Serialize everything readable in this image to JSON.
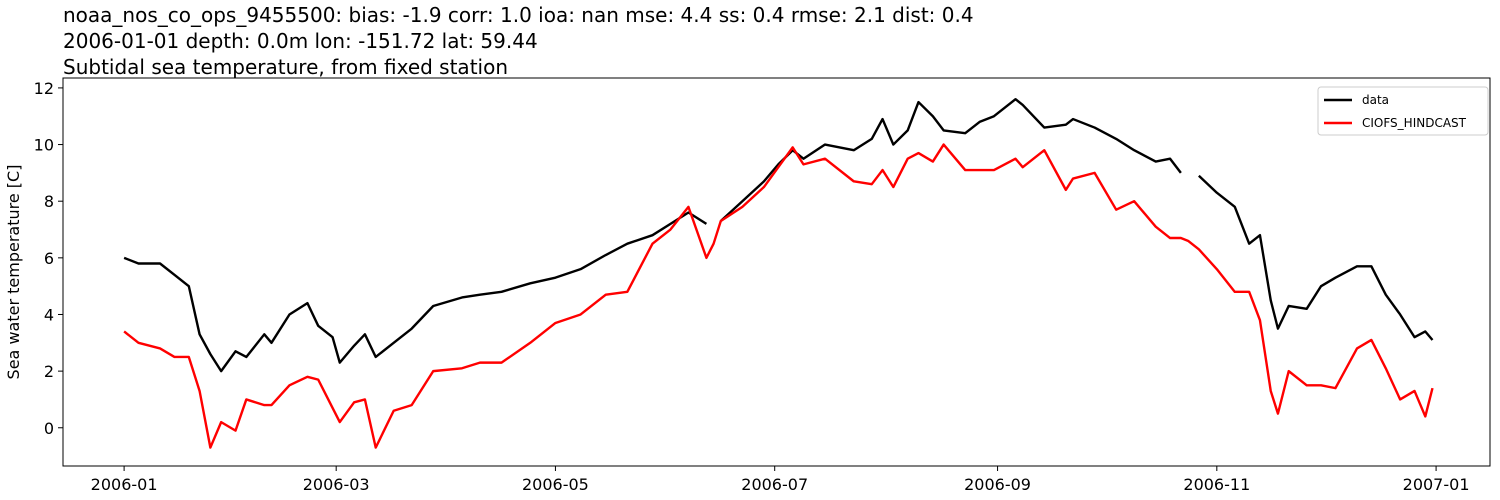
{
  "chart_data": {
    "type": "line",
    "title": [
      "noaa_nos_co_ops_9455500: bias: -1.9  corr: 1.0  ioa: nan  mse: 4.4  ss: 0.4  rmse: 2.1  dist: 0.4",
      "2006-01-01 depth: 0.0m lon: -151.72 lat: 59.44",
      "Subtidal sea temperature, from fixed station"
    ],
    "ylabel": "Sea water temperature [C]",
    "x": [
      "2006-01-01",
      "2006-01-05",
      "2006-01-11",
      "2006-01-15",
      "2006-01-19",
      "2006-01-22",
      "2006-01-25",
      "2006-01-28",
      "2006-02-01",
      "2006-02-04",
      "2006-02-09",
      "2006-02-11",
      "2006-02-16",
      "2006-02-21",
      "2006-02-24",
      "2006-02-28",
      "2006-03-02",
      "2006-03-06",
      "2006-03-09",
      "2006-03-12",
      "2006-03-17",
      "2006-03-22",
      "2006-03-28",
      "2006-04-05",
      "2006-04-10",
      "2006-04-16",
      "2006-04-24",
      "2006-05-01",
      "2006-05-08",
      "2006-05-15",
      "2006-05-21",
      "2006-05-28",
      "2006-06-02",
      "2006-06-07",
      "2006-06-12",
      "2006-06-14",
      "2006-06-16",
      "2006-06-22",
      "2006-06-28",
      "2006-07-02",
      "2006-07-06",
      "2006-07-09",
      "2006-07-15",
      "2006-07-23",
      "2006-07-28",
      "2006-07-31",
      "2006-08-03",
      "2006-08-07",
      "2006-08-10",
      "2006-08-14",
      "2006-08-17",
      "2006-08-23",
      "2006-08-27",
      "2006-08-31",
      "2006-09-06",
      "2006-09-08",
      "2006-09-14",
      "2006-09-20",
      "2006-09-22",
      "2006-09-28",
      "2006-10-04",
      "2006-10-09",
      "2006-10-15",
      "2006-10-19",
      "2006-10-22",
      "2006-10-24",
      "2006-10-27",
      "2006-11-01",
      "2006-11-06",
      "2006-11-10",
      "2006-11-13",
      "2006-11-16",
      "2006-11-18",
      "2006-11-21",
      "2006-11-26",
      "2006-11-30",
      "2006-12-04",
      "2006-12-10",
      "2006-12-14",
      "2006-12-18",
      "2006-12-22",
      "2006-12-26",
      "2006-12-29",
      "2006-12-31"
    ],
    "series": [
      {
        "name": "data",
        "color": "#000000",
        "values": [
          6.0,
          5.8,
          5.8,
          5.4,
          5.0,
          3.3,
          2.6,
          2.0,
          2.7,
          2.5,
          3.3,
          3.0,
          4.0,
          4.4,
          3.6,
          3.2,
          2.3,
          2.9,
          3.3,
          2.5,
          3.0,
          3.5,
          4.3,
          4.6,
          4.7,
          4.8,
          5.1,
          5.3,
          5.6,
          6.1,
          6.5,
          6.8,
          7.2,
          7.6,
          7.2,
          null,
          7.3,
          8.0,
          8.7,
          9.3,
          9.8,
          9.5,
          10.0,
          9.8,
          10.2,
          10.9,
          10.0,
          10.5,
          11.5,
          11.0,
          10.5,
          10.4,
          10.8,
          11.0,
          11.6,
          11.4,
          10.6,
          10.7,
          10.9,
          10.6,
          10.2,
          9.8,
          9.4,
          9.5,
          9.0,
          null,
          8.9,
          8.3,
          7.8,
          6.5,
          6.8,
          4.5,
          3.5,
          4.3,
          4.2,
          5.0,
          5.3,
          5.7,
          5.7,
          4.7,
          4.0,
          3.2,
          3.4,
          3.1
        ]
      },
      {
        "name": "CIOFS_HINDCAST",
        "color": "#ff0000",
        "values": [
          3.4,
          3.0,
          2.8,
          2.5,
          2.5,
          1.3,
          -0.7,
          0.2,
          -0.1,
          1.0,
          0.8,
          0.8,
          1.5,
          1.8,
          1.7,
          0.7,
          0.2,
          0.9,
          1.0,
          -0.7,
          0.6,
          0.8,
          2.0,
          2.1,
          2.3,
          2.3,
          3.0,
          3.7,
          4.0,
          4.7,
          4.8,
          6.5,
          7.0,
          7.8,
          6.0,
          6.5,
          7.3,
          7.8,
          8.5,
          9.2,
          9.9,
          9.3,
          9.5,
          8.7,
          8.6,
          9.1,
          8.5,
          9.5,
          9.7,
          9.4,
          10.0,
          9.1,
          9.1,
          9.1,
          9.5,
          9.2,
          9.8,
          8.4,
          8.8,
          9.0,
          7.7,
          8.0,
          7.1,
          6.7,
          6.7,
          6.6,
          6.3,
          5.6,
          4.8,
          4.8,
          3.8,
          1.3,
          0.5,
          2.0,
          1.5,
          1.5,
          1.4,
          2.8,
          3.1,
          2.1,
          1.0,
          1.3,
          0.4,
          1.4
        ]
      }
    ],
    "xlim": [
      "2005-12-15",
      "2007-01-16"
    ],
    "xticks": [
      {
        "value": "2006-01-01",
        "label": "2006-01"
      },
      {
        "value": "2006-03-01",
        "label": "2006-03"
      },
      {
        "value": "2006-05-01",
        "label": "2006-05"
      },
      {
        "value": "2006-07-01",
        "label": "2006-07"
      },
      {
        "value": "2006-09-01",
        "label": "2006-09"
      },
      {
        "value": "2006-11-01",
        "label": "2006-11"
      },
      {
        "value": "2007-01-01",
        "label": "2007-01"
      }
    ],
    "ylim": [
      -1.35,
      12.35
    ],
    "yticks": [
      0,
      2,
      4,
      6,
      8,
      10,
      12
    ],
    "grid": false,
    "legend": "upper right"
  }
}
